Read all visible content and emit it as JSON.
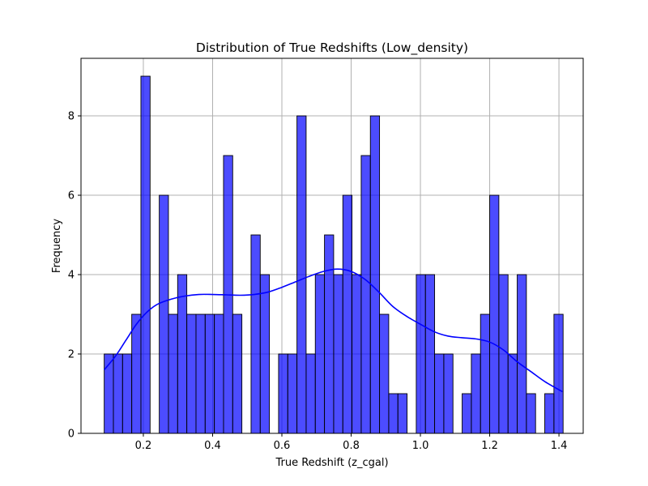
{
  "chart_data": {
    "type": "bar",
    "title": "Distribution of True Redshifts (Low_density)",
    "xlabel": "True Redshift (z_cgal)",
    "ylabel": "Frequency",
    "xlim": [
      0.02,
      1.47
    ],
    "ylim": [
      0,
      9.45
    ],
    "xticks": [
      {
        "value": 0.2,
        "label": "0.2"
      },
      {
        "value": 0.4,
        "label": "0.4"
      },
      {
        "value": 0.6,
        "label": "0.6"
      },
      {
        "value": 0.8,
        "label": "0.8"
      },
      {
        "value": 1.0,
        "label": "1.0"
      },
      {
        "value": 1.2,
        "label": "1.2"
      },
      {
        "value": 1.4,
        "label": "1.4"
      }
    ],
    "yticks": [
      {
        "value": 0,
        "label": "0"
      },
      {
        "value": 2,
        "label": "2"
      },
      {
        "value": 4,
        "label": "4"
      },
      {
        "value": 6,
        "label": "6"
      },
      {
        "value": 8,
        "label": "8"
      }
    ],
    "grid": true,
    "bar_fill": "#0000ff",
    "bar_fill_opacity": 0.7,
    "bar_edge": "#000000",
    "kde_color": "#0000ff",
    "bin_start": 0.087,
    "bin_width": 0.0265,
    "counts": [
      2,
      2,
      2,
      3,
      9,
      0,
      6,
      3,
      4,
      3,
      3,
      3,
      3,
      7,
      3,
      0,
      5,
      4,
      0,
      2,
      2,
      8,
      2,
      4,
      5,
      4,
      6,
      4,
      7,
      8,
      3,
      1,
      1,
      0,
      4,
      4,
      2,
      2,
      0,
      1,
      2,
      3,
      6,
      4,
      2,
      4,
      1,
      0,
      1,
      3
    ],
    "kde_points": [
      [
        0.087,
        1.6
      ],
      [
        0.12,
        1.95
      ],
      [
        0.15,
        2.35
      ],
      [
        0.18,
        2.75
      ],
      [
        0.21,
        3.05
      ],
      [
        0.24,
        3.25
      ],
      [
        0.28,
        3.38
      ],
      [
        0.32,
        3.46
      ],
      [
        0.36,
        3.5
      ],
      [
        0.4,
        3.5
      ],
      [
        0.44,
        3.49
      ],
      [
        0.48,
        3.48
      ],
      [
        0.52,
        3.5
      ],
      [
        0.56,
        3.56
      ],
      [
        0.6,
        3.68
      ],
      [
        0.64,
        3.82
      ],
      [
        0.68,
        3.96
      ],
      [
        0.72,
        4.08
      ],
      [
        0.76,
        4.14
      ],
      [
        0.8,
        4.08
      ],
      [
        0.84,
        3.88
      ],
      [
        0.88,
        3.56
      ],
      [
        0.92,
        3.2
      ],
      [
        0.96,
        2.95
      ],
      [
        1.0,
        2.75
      ],
      [
        1.04,
        2.56
      ],
      [
        1.08,
        2.45
      ],
      [
        1.12,
        2.41
      ],
      [
        1.16,
        2.38
      ],
      [
        1.2,
        2.3
      ],
      [
        1.24,
        2.1
      ],
      [
        1.28,
        1.8
      ],
      [
        1.32,
        1.55
      ],
      [
        1.36,
        1.3
      ],
      [
        1.41,
        1.05
      ]
    ]
  }
}
